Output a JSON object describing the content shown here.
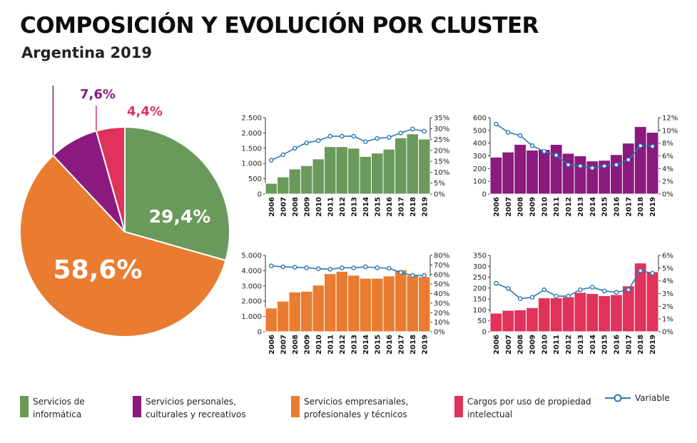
{
  "title": "COMPOSICIÓN Y EVOLUCIÓN POR CLUSTER",
  "subtitle": "Argentina 2019",
  "pie": {
    "slices": [
      {
        "name": "Servicios de informática",
        "value": 29.4,
        "label": "29,4%",
        "color": "#6a9a5b",
        "label_color": "#ffffff"
      },
      {
        "name": "Servicios empresariales, profesionales y técnicos",
        "value": 58.6,
        "label": "58,6%",
        "color": "#e97c31",
        "label_color": "#ffffff"
      },
      {
        "name": "Servicios personales, culturales y recreativos",
        "value": 7.6,
        "label": "7,6%",
        "color": "#8a1a7e",
        "label_color": "#8a1a7e"
      },
      {
        "name": "Cargos por uso de propiedad intelectual",
        "value": 4.4,
        "label": "4,4%",
        "color": "#e0325a",
        "label_color": "#e0325a"
      }
    ]
  },
  "chart_data": [
    {
      "type": "bar+line",
      "cluster": "Servicios de informática",
      "color": "#6a9a5b",
      "categories": [
        "2006",
        "2007",
        "2008",
        "2009",
        "2010",
        "2011",
        "2012",
        "2013",
        "2014",
        "2015",
        "2016",
        "2017",
        "2018",
        "2019"
      ],
      "bars": [
        350,
        560,
        820,
        930,
        1150,
        1550,
        1550,
        1500,
        1230,
        1340,
        1470,
        1840,
        1970,
        1800
      ],
      "line": [
        15.5,
        18,
        21,
        23.5,
        24.5,
        26.5,
        26.5,
        26.5,
        24,
        25.5,
        26,
        28,
        29.8,
        28.8
      ],
      "left_axis": {
        "min": 0,
        "max": 2500,
        "ticks": [
          0,
          500,
          1000,
          1500,
          2000,
          2500
        ],
        "tick_labels": [
          "0",
          "500",
          "1.000",
          "1.500",
          "2.000",
          "2.500"
        ]
      },
      "right_axis": {
        "min": 0,
        "max": 35,
        "ticks": [
          0,
          5,
          10,
          15,
          20,
          25,
          30,
          35
        ],
        "tick_labels": [
          "0%",
          "5%",
          "10%",
          "15%",
          "20%",
          "25%",
          "30%",
          "35%"
        ]
      }
    },
    {
      "type": "bar+line",
      "cluster": "Servicios personales, culturales y recreativos",
      "color": "#8a1a7e",
      "categories": [
        "2006",
        "2007",
        "2008",
        "2009",
        "2010",
        "2011",
        "2012",
        "2013",
        "2014",
        "2015",
        "2016",
        "2017",
        "2018",
        "2019"
      ],
      "bars": [
        290,
        330,
        390,
        345,
        350,
        390,
        320,
        300,
        260,
        265,
        310,
        400,
        530,
        485
      ],
      "line": [
        11,
        9.7,
        9.2,
        7.6,
        6.7,
        6.1,
        4.6,
        4.4,
        4.1,
        4.4,
        4.6,
        5.4,
        7.6,
        7.5
      ],
      "left_axis": {
        "min": 0,
        "max": 600,
        "ticks": [
          0,
          100,
          200,
          300,
          400,
          500,
          600
        ],
        "tick_labels": [
          "0",
          "100",
          "200",
          "300",
          "400",
          "500",
          "600"
        ]
      },
      "right_axis": {
        "min": 0,
        "max": 12,
        "ticks": [
          0,
          2,
          4,
          6,
          8,
          10,
          12
        ],
        "tick_labels": [
          "0%",
          "2%",
          "4%",
          "6%",
          "8%",
          "10%",
          "12%"
        ]
      }
    },
    {
      "type": "bar+line",
      "cluster": "Servicios empresariales, profesionales y técnicos",
      "color": "#e97c31",
      "categories": [
        "2006",
        "2007",
        "2008",
        "2009",
        "2010",
        "2011",
        "2012",
        "2013",
        "2014",
        "2015",
        "2016",
        "2017",
        "2018",
        "2019"
      ],
      "bars": [
        1550,
        2000,
        2600,
        2650,
        3050,
        3800,
        3950,
        3700,
        3500,
        3500,
        3650,
        4050,
        3700,
        3600
      ],
      "line": [
        69,
        68,
        67.5,
        67,
        66,
        65.5,
        67,
        67,
        68,
        67,
        66.5,
        62,
        59,
        59
      ],
      "left_axis": {
        "min": 0,
        "max": 5000,
        "ticks": [
          0,
          1000,
          2000,
          3000,
          4000,
          5000
        ],
        "tick_labels": [
          "0",
          "1.000",
          "2.000",
          "3.000",
          "4.000",
          "5.000"
        ]
      },
      "right_axis": {
        "min": 0,
        "max": 80,
        "ticks": [
          0,
          10,
          20,
          30,
          40,
          50,
          60,
          70,
          80
        ],
        "tick_labels": [
          "0%",
          "10%",
          "20%",
          "30%",
          "40%",
          "50%",
          "60%",
          "70%",
          "80%"
        ]
      }
    },
    {
      "type": "bar+line",
      "cluster": "Cargos por uso de propiedad intelectual",
      "color": "#e0325a",
      "categories": [
        "2006",
        "2007",
        "2008",
        "2009",
        "2010",
        "2011",
        "2012",
        "2013",
        "2014",
        "2015",
        "2016",
        "2017",
        "2018",
        "2019"
      ],
      "bars": [
        85,
        98,
        100,
        110,
        155,
        155,
        160,
        180,
        175,
        165,
        170,
        210,
        315,
        275
      ],
      "line": [
        3.8,
        3.4,
        2.6,
        2.7,
        3.3,
        2.8,
        2.8,
        3.3,
        3.5,
        3.2,
        3.1,
        3.3,
        4.8,
        4.6
      ],
      "left_axis": {
        "min": 0,
        "max": 350,
        "ticks": [
          0,
          50,
          100,
          150,
          200,
          250,
          300,
          350
        ],
        "tick_labels": [
          "0",
          "50",
          "100",
          "150",
          "200",
          "250",
          "300",
          "350"
        ]
      },
      "right_axis": {
        "min": 0,
        "max": 6,
        "ticks": [
          0,
          1,
          2,
          3,
          4,
          5,
          6
        ],
        "tick_labels": [
          "0%",
          "1%",
          "2%",
          "3%",
          "4%",
          "5%",
          "6%"
        ]
      }
    }
  ],
  "line_color": "#2b78b5",
  "legend": {
    "items": [
      {
        "label": "Servicios de informática",
        "line1": "Servicios de",
        "line2": "informática",
        "color": "#6a9a5b"
      },
      {
        "label": "Servicios personales, culturales y recreativos",
        "line1": "Servicios personales,",
        "line2": "culturales y recreativos",
        "color": "#8a1a7e"
      },
      {
        "label": "Servicios empresariales, profesionales y técnicos",
        "line1": "Servicios empresariales,",
        "line2": "profesionales y técnicos",
        "color": "#e97c31"
      },
      {
        "label": "Cargos por uso de propiedad intelectual",
        "line1": "Cargos por uso de propiedad",
        "line2": "intelectual",
        "color": "#e0325a"
      }
    ],
    "variable_label": "Variable"
  }
}
